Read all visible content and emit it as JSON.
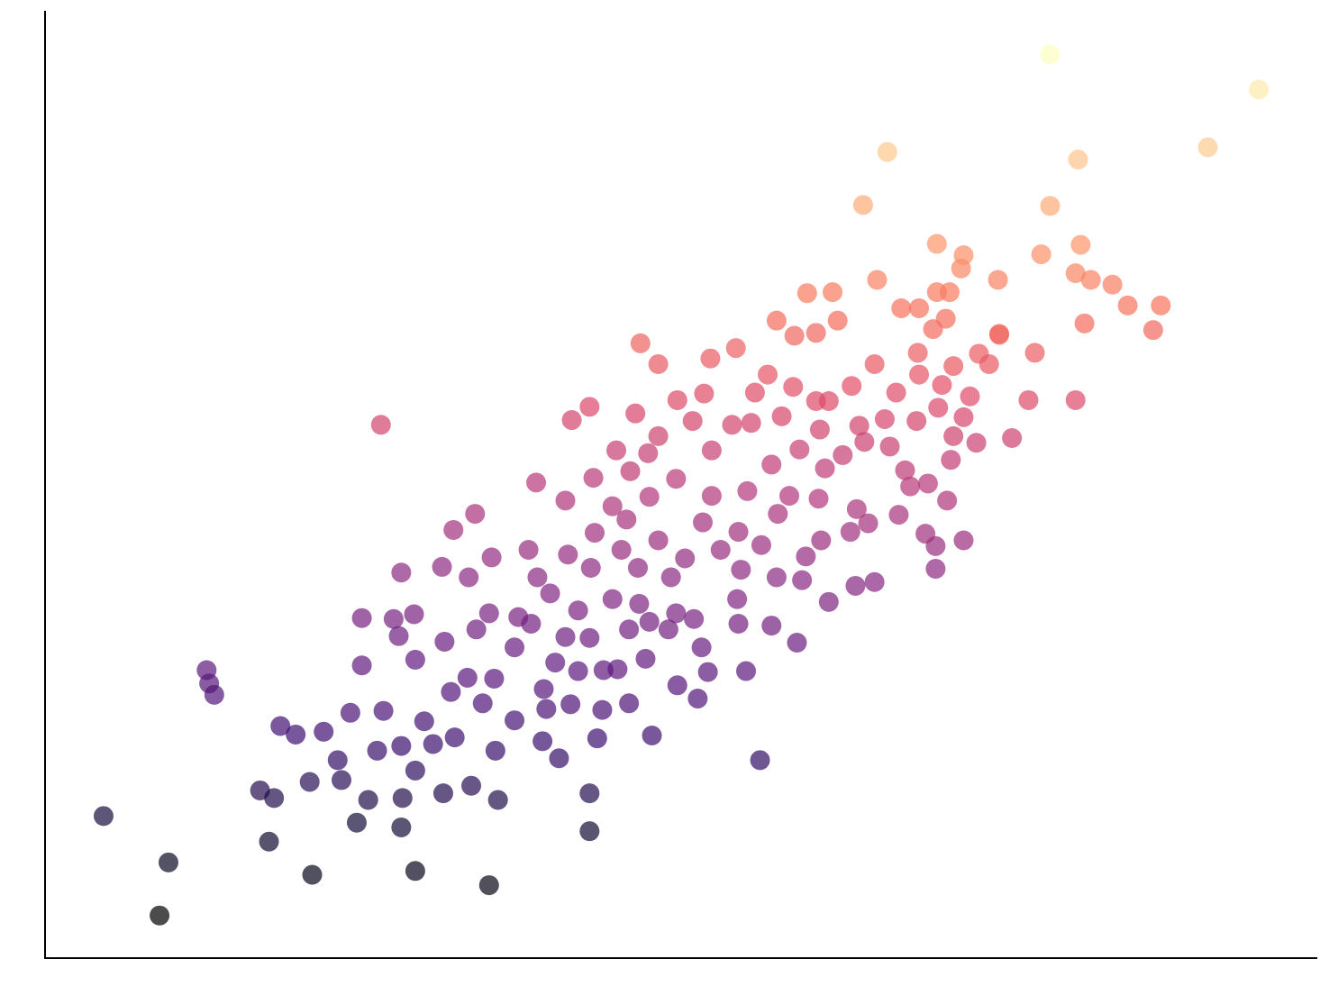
{
  "chart_data": {
    "type": "scatter",
    "colormap": "magma",
    "color_by": "y",
    "opacity": 0.7,
    "xlim": [
      0,
      100
    ],
    "ylim": [
      0,
      100
    ],
    "grid": false,
    "x": [
      4.6,
      9.0,
      9.7,
      17.6,
      21.0,
      29.1,
      34.9,
      42.8,
      42.8,
      24.5,
      28.0,
      16.9,
      18.0,
      20.8,
      23.3,
      25.4,
      28.1,
      31.3,
      33.5,
      35.6,
      12.7,
      12.9,
      13.3,
      18.5,
      19.7,
      21.9,
      23.0,
      24.0,
      26.6,
      26.1,
      28.0,
      29.1,
      30.5,
      32.2,
      29.8,
      31.9,
      33.2,
      34.4,
      35.4,
      36.9,
      39.1,
      40.4,
      43.4,
      47.7,
      45.9,
      43.8,
      41.3,
      39.4,
      39.2,
      35.3,
      24.9,
      24.9,
      27.4,
      29.0,
      27.8,
      29.1,
      31.4,
      33.9,
      34.9,
      37.2,
      38.2,
      36.9,
      40.1,
      41.9,
      43.9,
      45.0,
      47.2,
      49.7,
      51.3,
      52.1,
      55.1,
      56.2,
      59.1,
      57.1,
      54.5,
      51.6,
      49.0,
      47.5,
      45.9,
      42.8,
      40.9,
      28.0,
      31.2,
      33.3,
      35.1,
      32.1,
      33.8,
      38.0,
      38.7,
      39.7,
      41.9,
      44.6,
      46.7,
      49.6,
      51.0,
      54.4,
      59.5,
      61.6,
      63.7,
      65.2,
      70.0,
      72.2,
      70.0,
      69.2,
      67.1,
      64.7,
      63.3,
      61.0,
      59.8,
      57.5,
      54.7,
      53.1,
      50.3,
      49.2,
      46.6,
      45.3,
      42.9,
      41.1,
      43.2,
      45.7,
      48.2,
      51.7,
      54.5,
      56.3,
      57.6,
      58.5,
      60.8,
      63.8,
      69.4,
      70.9,
      68.0,
      38.6,
      40.9,
      43.1,
      44.6,
      46.0,
      47.5,
      49.6,
      52.4,
      55.2,
      57.1,
      59.3,
      61.3,
      62.7,
      64.4,
      66.4,
      67.6,
      71.2,
      73.2,
      76.0,
      71.4,
      72.2,
      70.2,
      68.5,
      66.0,
      64.0,
      60.9,
      57.9,
      55.5,
      54.0,
      52.4,
      50.9,
      48.2,
      46.4,
      47.4,
      44.9,
      41.4,
      42.8,
      26.4,
      49.7,
      51.8,
      55.8,
      56.8,
      58.8,
      60.6,
      61.6,
      63.4,
      65.2,
      66.9,
      68.6,
      68.7,
      70.5,
      71.4,
      72.7,
      74.2,
      73.4,
      75.0,
      77.3,
      77.8,
      81.0,
      46.8,
      48.2,
      52.3,
      54.3,
      57.5,
      58.9,
      60.6,
      62.3,
      59.9,
      61.9,
      65.4,
      67.3,
      68.7,
      70.1,
      69.8,
      70.8,
      71.1,
      72.0,
      72.2,
      70.1,
      74.9,
      75.0,
      78.3,
      81.0,
      81.4,
      82.2,
      83.9,
      85.1,
      87.7,
      87.1,
      81.7,
      64.3,
      66.2,
      79.0,
      81.2,
      91.4,
      95.4,
      79.0
    ],
    "y": [
      15.0,
      4.5,
      10.1,
      12.3,
      8.8,
      9.2,
      7.7,
      13.4,
      17.4,
      14.3,
      13.8,
      17.7,
      16.9,
      18.6,
      18.8,
      16.7,
      16.9,
      17.4,
      18.2,
      16.7,
      30.4,
      29.0,
      27.8,
      24.5,
      23.6,
      23.9,
      20.9,
      25.9,
      26.1,
      21.9,
      22.4,
      19.8,
      22.6,
      23.3,
      25.0,
      28.1,
      29.6,
      26.9,
      21.9,
      25.1,
      22.9,
      21.1,
      23.2,
      23.5,
      26.9,
      26.2,
      26.8,
      26.3,
      28.4,
      29.5,
      35.9,
      30.9,
      35.8,
      36.3,
      34.0,
      31.5,
      33.4,
      34.7,
      36.4,
      36.0,
      35.3,
      32.8,
      31.2,
      30.3,
      30.4,
      30.5,
      31.6,
      28.8,
      27.4,
      30.2,
      30.3,
      20.9,
      33.3,
      35.1,
      35.3,
      32.8,
      34.7,
      35.5,
      34.7,
      33.8,
      33.9,
      40.7,
      41.3,
      40.2,
      42.3,
      45.2,
      46.9,
      43.1,
      40.2,
      38.5,
      36.7,
      37.9,
      37.4,
      36.4,
      35.8,
      37.9,
      39.9,
      37.6,
      39.3,
      39.7,
      41.1,
      44.1,
      43.5,
      44.8,
      46.8,
      45.9,
      45.0,
      44.1,
      42.4,
      40.2,
      41.0,
      43.1,
      42.2,
      40.2,
      41.2,
      43.1,
      41.2,
      42.6,
      44.9,
      46.3,
      44.1,
      46.0,
      45.0,
      43.6,
      46.9,
      48.8,
      48.5,
      47.4,
      50.1,
      48.3,
      49.8,
      50.2,
      48.3,
      50.7,
      47.7,
      51.4,
      48.7,
      50.6,
      48.8,
      49.3,
      52.1,
      53.7,
      51.7,
      53.1,
      54.5,
      54.0,
      51.5,
      52.6,
      54.4,
      54.9,
      55.1,
      57.1,
      58.1,
      56.7,
      56.9,
      56.2,
      55.8,
      57.2,
      56.5,
      56.3,
      53.6,
      56.7,
      55.1,
      57.5,
      53.3,
      53.6,
      56.8,
      58.2,
      56.3,
      58.9,
      59.6,
      59.7,
      61.6,
      60.3,
      58.8,
      58.8,
      60.4,
      62.7,
      59.7,
      63.9,
      61.6,
      60.5,
      62.5,
      59.3,
      62.7,
      63.8,
      65.9,
      58.9,
      63.9,
      58.9,
      64.9,
      62.7,
      63.3,
      64.4,
      67.3,
      65.7,
      66.0,
      67.3,
      70.2,
      70.3,
      71.6,
      68.6,
      68.6,
      70.3,
      66.4,
      67.5,
      70.3,
      72.8,
      74.2,
      75.4,
      71.6,
      65.8,
      74.3,
      72.3,
      75.3,
      71.6,
      71.1,
      68.9,
      68.9,
      66.3,
      67.0,
      79.5,
      85.1,
      79.4,
      84.3,
      85.6,
      91.7,
      95.4
    ]
  }
}
